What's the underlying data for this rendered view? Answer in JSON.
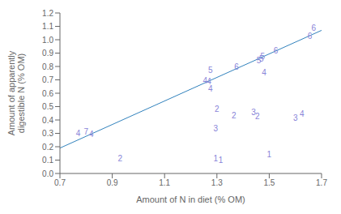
{
  "chart_data": {
    "type": "scatter",
    "title": "",
    "xlabel": "Amount of N in diet (% OM)",
    "ylabel": "Amount of apparently\ndigestible N (% OM)",
    "xlim": [
      0.7,
      1.7
    ],
    "ylim": [
      0,
      1.2
    ],
    "xticks": [
      0.7,
      0.9,
      1.1,
      1.3,
      1.5,
      1.7
    ],
    "yticks": [
      {
        "value": 0,
        "label": "0.0"
      },
      0.1,
      0.2,
      0.3,
      0.4,
      0.5,
      0.6,
      0.7,
      0.8,
      0.9,
      {
        "value": 1,
        "label": "1.0"
      },
      1.1,
      1.2
    ],
    "grid": false,
    "series": [
      {
        "type": "scatter",
        "marker": "text",
        "x": [
          0.77,
          0.8,
          0.82,
          0.93,
          1.255,
          1.27,
          1.275,
          1.275,
          1.3,
          1.295,
          1.295,
          1.315,
          1.365,
          1.375,
          1.44,
          1.455,
          1.46,
          1.47,
          1.475,
          1.48,
          1.5,
          1.525,
          1.6,
          1.625,
          1.655,
          1.67
        ],
        "values": [
          0.3,
          0.315,
          0.295,
          0.115,
          0.695,
          0.69,
          0.635,
          0.775,
          0.48,
          0.335,
          0.115,
          0.1,
          0.435,
          0.8,
          0.455,
          0.425,
          0.845,
          0.86,
          0.875,
          0.755,
          0.145,
          0.92,
          0.415,
          0.445,
          1.025,
          1.09
        ],
        "labels": [
          "4",
          "7",
          "4",
          "2",
          "4",
          "4",
          "4",
          "5",
          "2",
          "3",
          "1",
          "1",
          "2",
          "6",
          "3",
          "2",
          "5",
          "5",
          "5",
          "4",
          "1",
          "6",
          "3",
          "4",
          "6",
          "6"
        ]
      },
      {
        "type": "line",
        "x": [
          0.7,
          1.7
        ],
        "values": [
          0.19,
          1.07
        ]
      }
    ]
  }
}
